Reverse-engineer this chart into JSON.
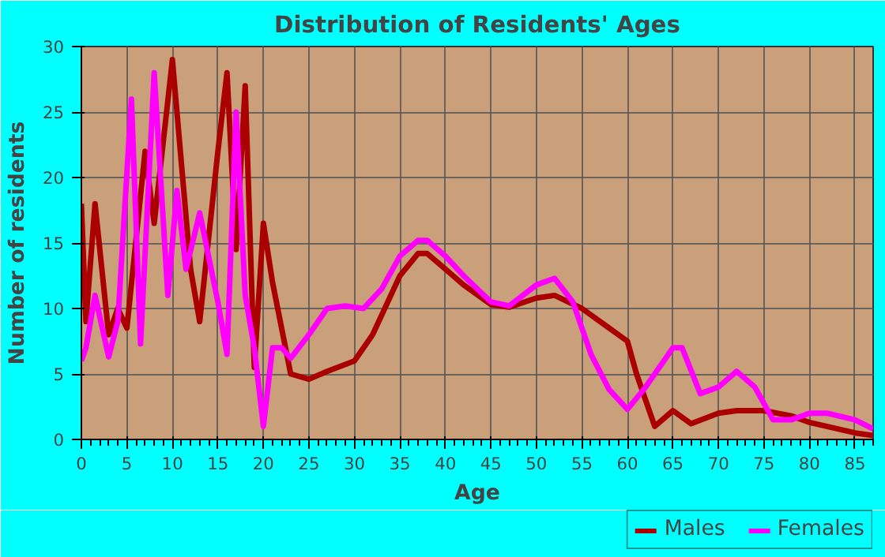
{
  "chart_data": {
    "type": "line",
    "title": "Distribution of Residents' Ages",
    "xlabel": "Age",
    "ylabel": "Number of residents",
    "xlim": [
      0,
      87
    ],
    "ylim": [
      0,
      30
    ],
    "xticks": [
      0,
      5,
      10,
      15,
      20,
      25,
      30,
      35,
      40,
      45,
      50,
      55,
      60,
      65,
      70,
      75,
      80,
      85
    ],
    "yticks": [
      0,
      5,
      10,
      15,
      20,
      25,
      30
    ],
    "grid": true,
    "legend": "bottom right",
    "line_style": "solid",
    "series": [
      {
        "name": "Males",
        "color": "#aa0000",
        "x": [
          0,
          0.5,
          1.5,
          3,
          4,
          5,
          7,
          8,
          10,
          12,
          13,
          15,
          16,
          17,
          18,
          19,
          20,
          21,
          23,
          25,
          27,
          30,
          32,
          35,
          37,
          38,
          40,
          42,
          45,
          47,
          50,
          52,
          55,
          58,
          60,
          61,
          63,
          65,
          67,
          70,
          72,
          75,
          78,
          80,
          85,
          87
        ],
        "values": [
          18,
          9,
          18,
          8,
          10,
          8.5,
          22,
          16.5,
          29,
          13,
          9,
          22,
          28,
          14.5,
          27,
          5.5,
          16.5,
          12,
          5,
          4.6,
          5.2,
          6,
          8,
          12.5,
          14.2,
          14.2,
          13,
          11.8,
          10.3,
          10.1,
          10.8,
          11,
          10,
          8.5,
          7.5,
          5,
          1,
          2.2,
          1.2,
          2,
          2.2,
          2.2,
          1.8,
          1.3,
          0.5,
          0.3
        ]
      },
      {
        "name": "Females",
        "color": "#ff00ff",
        "x": [
          0,
          0.5,
          1.5,
          3,
          4,
          5.5,
          6.5,
          8,
          9.5,
          10.5,
          11.5,
          13,
          15,
          16,
          17,
          18,
          19,
          20,
          21,
          22,
          23,
          25,
          27,
          29,
          31,
          33,
          35,
          37,
          38,
          40,
          42,
          45,
          47,
          50,
          52,
          54,
          56,
          58,
          60,
          62,
          64,
          65,
          66,
          68,
          70,
          72,
          74,
          76,
          78,
          80,
          82,
          85,
          87
        ],
        "values": [
          6,
          7,
          11,
          6.3,
          9,
          26,
          7.3,
          28,
          11,
          19,
          13,
          17.3,
          10.5,
          6.5,
          25,
          11,
          7,
          1,
          7,
          7,
          6.2,
          8,
          10,
          10.2,
          10,
          11.5,
          14,
          15.2,
          15.2,
          14,
          12.5,
          10.5,
          10.2,
          11.8,
          12.3,
          10.5,
          6.5,
          3.8,
          2.3,
          4,
          6,
          7,
          7,
          3.5,
          4,
          5.2,
          4,
          1.5,
          1.5,
          2,
          2,
          1.5,
          0.8
        ]
      }
    ]
  }
}
